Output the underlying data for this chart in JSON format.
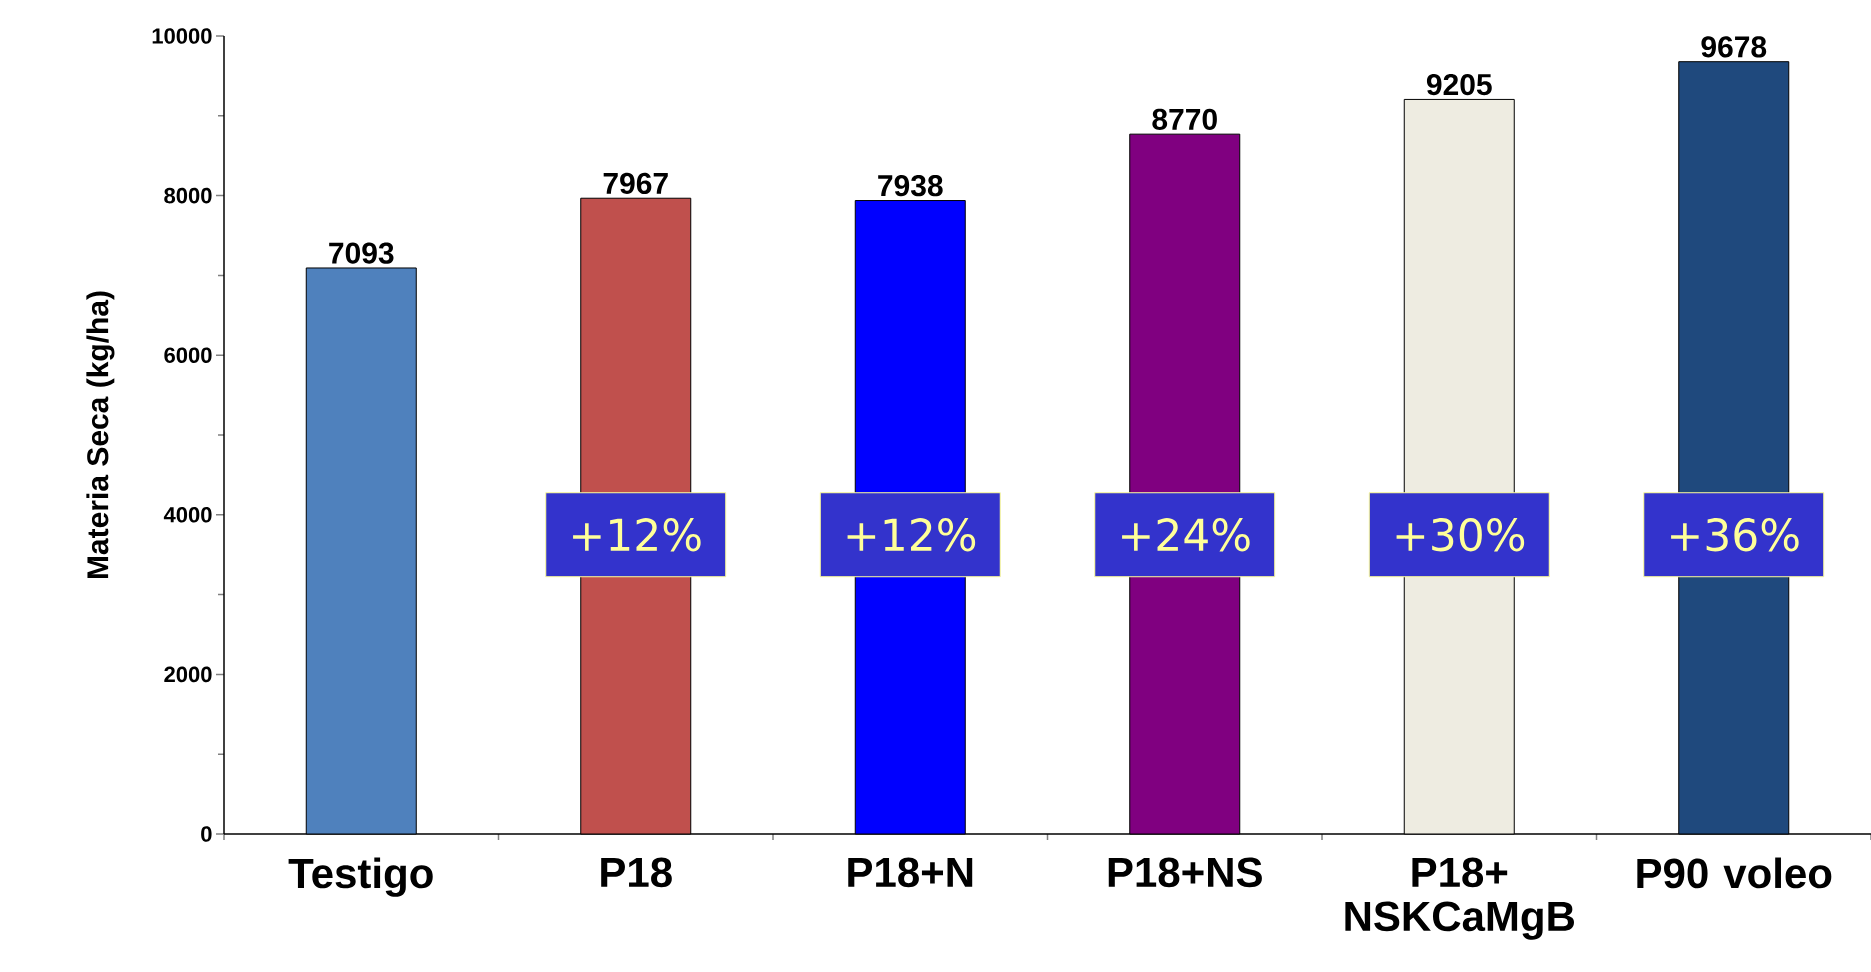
{
  "chart_data": {
    "type": "bar",
    "ylabel": "Materia Seca (kg/ha)",
    "categories": [
      "Testigo",
      "P18",
      "P18+N",
      "P18+NS",
      "P18+ NSKCaMgB",
      "P90 voleo"
    ],
    "values": [
      7093,
      7967,
      7938,
      8770,
      9205,
      9678
    ],
    "colors": [
      "#4f81bd",
      "#c0504d",
      "#0000ff",
      "#800080",
      "#eeece1",
      "#1f497d"
    ],
    "ylim": [
      0,
      10000
    ],
    "yticks": [
      0,
      2000,
      4000,
      6000,
      8000,
      10000
    ],
    "data_labels": true,
    "grid": false,
    "annotations": [
      "+12%",
      "+12%",
      "+24%",
      "+30%",
      "+36%"
    ]
  }
}
